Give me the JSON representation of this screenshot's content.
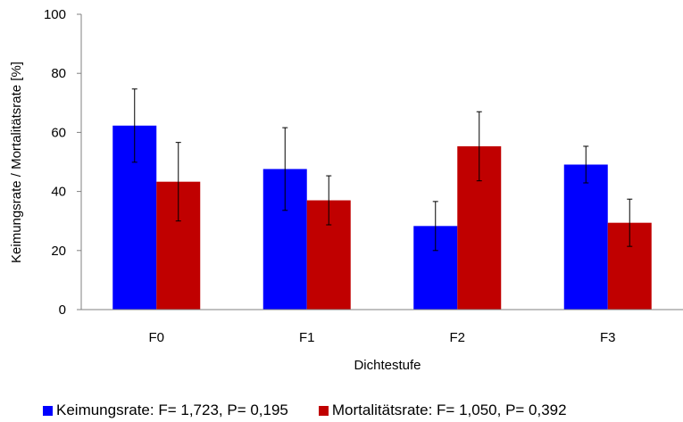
{
  "chart_data": {
    "type": "bar",
    "categories": [
      "F0",
      "F1",
      "F2",
      "F3"
    ],
    "series": [
      {
        "name": "Keimungsrate: F= 1,723, P= 0,195",
        "color": "#0000ff",
        "values": [
          62.3,
          47.6,
          28.3,
          49.1
        ],
        "error": [
          12.4,
          14.0,
          8.3,
          6.2
        ]
      },
      {
        "name": "Mortalitätsrate: F= 1,050, P= 0,392",
        "color": "#c00000",
        "values": [
          43.3,
          37.0,
          55.3,
          29.4
        ],
        "error": [
          13.3,
          8.3,
          11.7,
          8.0
        ]
      }
    ],
    "xlabel": "Dichtestufe",
    "ylabel": "Keimungsrate / Mortalitätsrate [%]",
    "ylim": [
      0,
      100
    ],
    "yticks": [
      "0",
      "20",
      "40",
      "60",
      "80",
      "100"
    ],
    "grid": false,
    "legend_position": "bottom"
  }
}
